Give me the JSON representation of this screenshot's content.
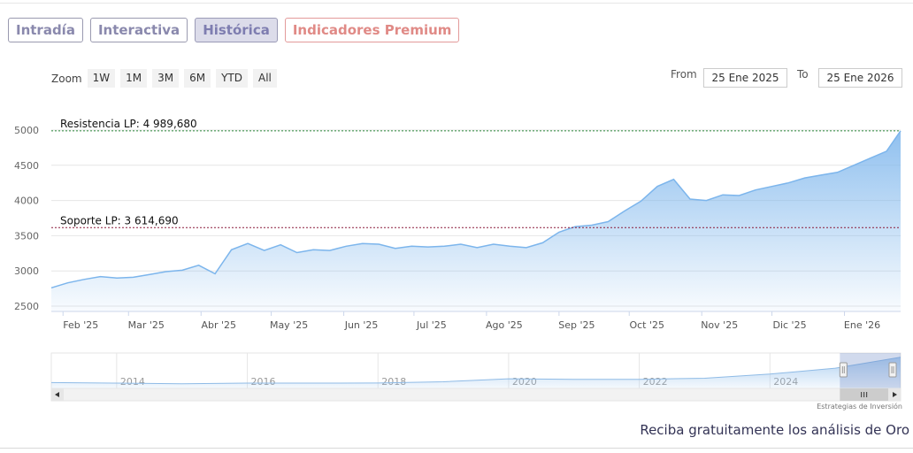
{
  "tabs": [
    "Intradía",
    "Interactiva",
    "Histórica",
    "Indicadores Premium"
  ],
  "zoom": {
    "label": "Zoom",
    "buttons": [
      "1W",
      "1M",
      "3M",
      "6M",
      "YTD",
      "All"
    ]
  },
  "range": {
    "from_label": "From",
    "from_value": "25 Ene 2025",
    "to_label": "To",
    "to_value": "25 Ene 2026"
  },
  "subscribe": "Reciba gratuitamente los análisis de Oro",
  "credits": "Estrategias de Inversión",
  "colors": {
    "line": "#7cb5ec",
    "resistance": "#2e8b3d",
    "support": "#8b1a3a"
  },
  "chart_data": {
    "type": "area",
    "ylim": [
      2500,
      5000
    ],
    "yticks": [
      2500,
      3000,
      3500,
      4000,
      4500,
      5000
    ],
    "x_ticks": [
      "Feb '25",
      "Mar '25",
      "Abr '25",
      "May '25",
      "Jun '25",
      "Jul '25",
      "Ago '25",
      "Sep '25",
      "Oct '25",
      "Nov '25",
      "Dic '25",
      "Ene '26"
    ],
    "x": [
      "2025-01-27",
      "2025-02-03",
      "2025-02-10",
      "2025-02-17",
      "2025-02-24",
      "2025-03-03",
      "2025-03-10",
      "2025-03-17",
      "2025-03-24",
      "2025-03-31",
      "2025-04-07",
      "2025-04-14",
      "2025-04-21",
      "2025-04-28",
      "2025-05-05",
      "2025-05-12",
      "2025-05-19",
      "2025-05-26",
      "2025-06-02",
      "2025-06-09",
      "2025-06-16",
      "2025-06-23",
      "2025-06-30",
      "2025-07-07",
      "2025-07-14",
      "2025-07-21",
      "2025-07-28",
      "2025-08-04",
      "2025-08-11",
      "2025-08-18",
      "2025-08-25",
      "2025-09-01",
      "2025-09-08",
      "2025-09-15",
      "2025-09-22",
      "2025-09-29",
      "2025-10-06",
      "2025-10-13",
      "2025-10-20",
      "2025-10-27",
      "2025-11-03",
      "2025-11-10",
      "2025-11-17",
      "2025-11-24",
      "2025-12-01",
      "2025-12-08",
      "2025-12-15",
      "2025-12-22",
      "2025-12-29",
      "2026-01-05",
      "2026-01-12",
      "2026-01-19",
      "2026-01-25"
    ],
    "values": [
      2760,
      2830,
      2880,
      2920,
      2900,
      2910,
      2950,
      2990,
      3010,
      3080,
      2960,
      3300,
      3390,
      3290,
      3370,
      3260,
      3300,
      3290,
      3350,
      3390,
      3380,
      3320,
      3350,
      3340,
      3350,
      3380,
      3330,
      3380,
      3350,
      3330,
      3400,
      3550,
      3630,
      3650,
      3700,
      3850,
      3990,
      4200,
      4300,
      4020,
      4000,
      4080,
      4070,
      4150,
      4200,
      4250,
      4320,
      4360,
      4400,
      4500,
      4600,
      4700,
      4989
    ],
    "lines": [
      {
        "label": "Resistencia LP: 4 989,680",
        "value": 4989.68
      },
      {
        "label": "Soporte LP: 3 614,690",
        "value": 3614.69
      }
    ],
    "navigator": {
      "year_labels": [
        "2014",
        "2016",
        "2018",
        "2020",
        "2022",
        "2024"
      ],
      "years": [
        2014,
        2016,
        2018,
        2020,
        2022,
        2024
      ],
      "series_x": [
        2013.0,
        2014.0,
        2015.0,
        2016.0,
        2017.0,
        2018.0,
        2019.0,
        2020.0,
        2021.0,
        2022.0,
        2023.0,
        2024.0,
        2025.0,
        2026.0
      ],
      "series_y": [
        1330,
        1250,
        1150,
        1250,
        1260,
        1270,
        1450,
        1880,
        1800,
        1800,
        1950,
        2550,
        3400,
        4989
      ],
      "selection": [
        2025.07,
        2026.07
      ]
    }
  }
}
